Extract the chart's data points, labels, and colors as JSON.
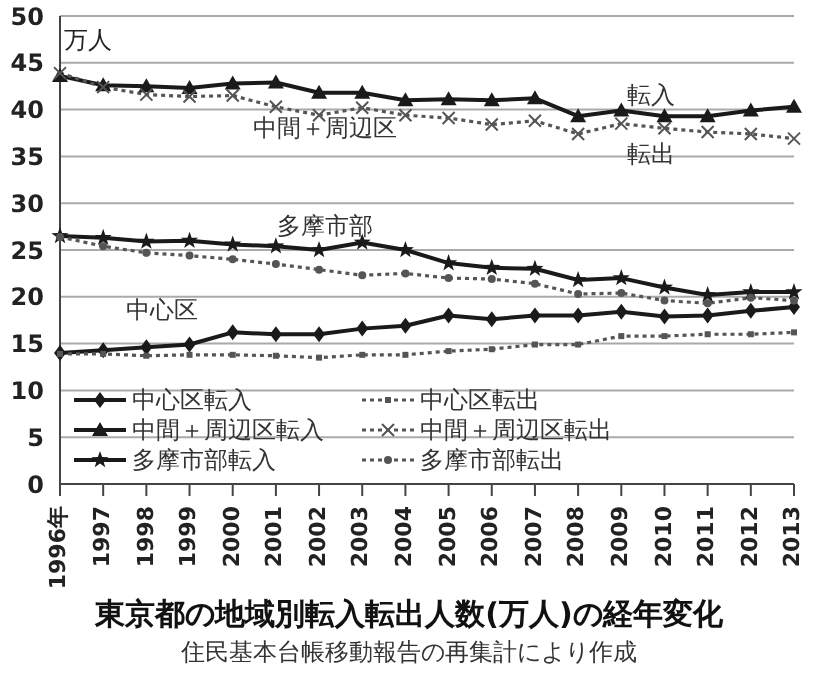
{
  "chart_data": {
    "type": "line",
    "title": "東京都の地域別転入転出人数(万人)の経年変化",
    "ylabel": "万人",
    "categories": [
      "1996年",
      "1997",
      "1998",
      "1999",
      "2000",
      "2001",
      "2002",
      "2003",
      "2004",
      "2005",
      "2006",
      "2007",
      "2008",
      "2009",
      "2010",
      "2011",
      "2012",
      "2013"
    ],
    "series": [
      {
        "name": "中心区転入",
        "color": "#1a1a1a",
        "marker": "diamond",
        "line_style": "solid",
        "values": [
          14.0,
          14.3,
          14.6,
          14.9,
          16.2,
          16.0,
          16.0,
          16.6,
          16.9,
          18.0,
          17.6,
          18.0,
          18.0,
          18.4,
          17.9,
          18.0,
          18.5,
          18.9
        ]
      },
      {
        "name": "中心区転出",
        "color": "#555555",
        "marker": "square",
        "line_style": "dotted",
        "values": [
          13.9,
          13.9,
          13.7,
          13.8,
          13.8,
          13.7,
          13.5,
          13.8,
          13.8,
          14.2,
          14.4,
          14.9,
          14.9,
          15.8,
          15.8,
          16.0,
          16.0,
          16.2
        ]
      },
      {
        "name": "中間＋周辺区転入",
        "color": "#1a1a1a",
        "marker": "triangle",
        "line_style": "solid",
        "values": [
          43.6,
          42.6,
          42.5,
          42.3,
          42.8,
          42.9,
          41.8,
          41.8,
          41.0,
          41.1,
          41.0,
          41.2,
          39.3,
          39.9,
          39.3,
          39.3,
          39.9,
          40.3
        ]
      },
      {
        "name": "中間＋周辺区転出",
        "color": "#555555",
        "marker": "cross",
        "line_style": "dotted",
        "values": [
          43.9,
          42.4,
          41.6,
          41.4,
          41.5,
          40.3,
          39.4,
          40.2,
          39.4,
          39.1,
          38.4,
          38.8,
          37.4,
          38.5,
          38.0,
          37.6,
          37.4,
          36.9
        ]
      },
      {
        "name": "多摩市部転入",
        "color": "#1a1a1a",
        "marker": "star",
        "line_style": "solid",
        "values": [
          26.5,
          26.3,
          25.9,
          26.0,
          25.6,
          25.4,
          25.0,
          25.8,
          25.0,
          23.6,
          23.1,
          23.0,
          21.8,
          22.0,
          21.0,
          20.2,
          20.5,
          20.5
        ]
      },
      {
        "name": "多摩市部転出",
        "color": "#555555",
        "marker": "circle",
        "line_style": "dotted",
        "values": [
          26.4,
          25.4,
          24.7,
          24.4,
          24.0,
          23.5,
          22.9,
          22.3,
          22.5,
          22.0,
          21.9,
          21.4,
          20.3,
          20.4,
          19.6,
          19.3,
          19.9,
          19.6
        ]
      }
    ],
    "ylim": [
      0,
      50
    ],
    "yticks": [
      0,
      5,
      10,
      15,
      20,
      25,
      30,
      35,
      40,
      45,
      50
    ],
    "grid": "y",
    "legend": "bottom left",
    "subtitle": "住民基本台帳移動報告の再集計により作成",
    "annotations": [
      "転入",
      "転出",
      "中間＋周辺区",
      "多摩市部",
      "中心区"
    ]
  }
}
